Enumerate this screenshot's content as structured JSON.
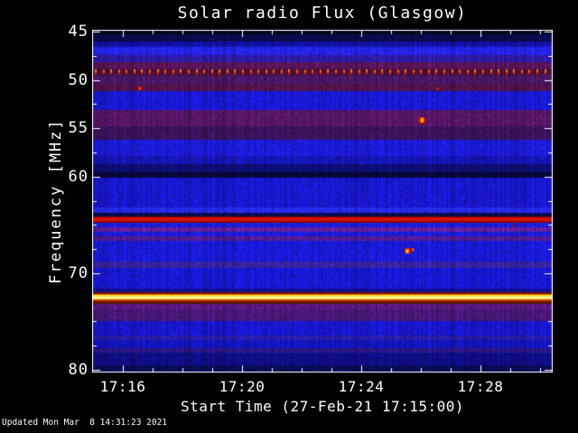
{
  "updated": "Updated Mon Mar  8 14:31:23 2021",
  "chart_data": {
    "type": "heatmap",
    "title": "Solar radio Flux (Glasgow)",
    "xlabel": "Start Time (27-Feb-21 17:15:00)",
    "ylabel": "Frequency [MHz]",
    "x_start_time": "17:15:00",
    "x_span_min": 15.4,
    "x_minor_step_min": 1,
    "x_ticks": [
      {
        "label": "17:16",
        "t": 1
      },
      {
        "label": "17:20",
        "t": 5
      },
      {
        "label": "17:24",
        "t": 9
      },
      {
        "label": "17:28",
        "t": 13
      }
    ],
    "ylim": [
      45,
      80
    ],
    "y_tick_labels": [
      "45",
      "50",
      "55",
      "60",
      "70",
      "80"
    ],
    "y_major_ticks": [
      45,
      50,
      55,
      60,
      70,
      80
    ],
    "y_minor_step": 2.5,
    "colors": {
      "frame": "#ffffff",
      "text": "#ffffff",
      "background": "#000000"
    },
    "bands": [
      [
        44.7,
        45.25,
        "#06061c"
      ],
      [
        45.25,
        45.95,
        "#0a0a48"
      ],
      [
        45.95,
        46.55,
        "#101098"
      ],
      [
        46.55,
        47.35,
        "#2222e0"
      ],
      [
        47.35,
        48.1,
        "#2c189c"
      ],
      [
        48.1,
        48.8,
        "#551353"
      ],
      [
        48.8,
        49.5,
        "#47103c"
      ],
      [
        49.5,
        50.35,
        "#441560"
      ],
      [
        50.35,
        51.1,
        "#4c1146"
      ],
      [
        51.1,
        53.1,
        "#1717c8"
      ],
      [
        53.1,
        54.8,
        "#521460"
      ],
      [
        54.8,
        56.2,
        "#371257"
      ],
      [
        56.2,
        57.8,
        "#1919cc"
      ],
      [
        57.8,
        58.7,
        "#1414aa"
      ],
      [
        58.7,
        59.5,
        "#0d0d6c"
      ],
      [
        59.5,
        60.05,
        "#080834"
      ],
      [
        60.05,
        63.15,
        "#1616c2"
      ],
      [
        63.15,
        63.7,
        "#2525e4"
      ],
      [
        63.7,
        64.08,
        "#0b0b46"
      ],
      [
        64.08,
        64.18,
        "#7e0900",
        "flat"
      ],
      [
        64.18,
        64.58,
        "#d81000",
        "flat"
      ],
      [
        64.58,
        64.7,
        "#8c0a00",
        "flat"
      ],
      [
        64.7,
        65.25,
        "#1a1ace"
      ],
      [
        65.25,
        65.7,
        "#5c1d99"
      ],
      [
        65.7,
        66.18,
        "#1a1ace"
      ],
      [
        66.18,
        66.58,
        "#4d1a8c"
      ],
      [
        66.58,
        68.75,
        "#1818cc"
      ],
      [
        68.75,
        69.4,
        "#342097"
      ],
      [
        69.4,
        71.6,
        "#1616c6"
      ],
      [
        71.6,
        71.92,
        "#101086"
      ],
      [
        71.92,
        72.08,
        "#7c1404",
        "flat"
      ],
      [
        72.08,
        72.24,
        "#e07800",
        "flat"
      ],
      [
        72.24,
        72.38,
        "#ffdf2e",
        "flat"
      ],
      [
        72.38,
        72.54,
        "#ffffae",
        "flat"
      ],
      [
        72.54,
        72.68,
        "#ffd014",
        "flat"
      ],
      [
        72.68,
        72.82,
        "#c83800",
        "flat"
      ],
      [
        72.82,
        73.1,
        "#5e1408",
        "flat"
      ],
      [
        73.1,
        73.68,
        "#53177a"
      ],
      [
        73.68,
        74.9,
        "#441670"
      ],
      [
        74.9,
        76.45,
        "#1515c0"
      ],
      [
        76.45,
        76.85,
        "#271a9e"
      ],
      [
        76.85,
        77.75,
        "#1313b2"
      ],
      [
        77.75,
        78.15,
        "#2a157e"
      ],
      [
        78.15,
        79.5,
        "#0d0d7e"
      ],
      [
        79.5,
        80.35,
        "#0a0a50"
      ]
    ],
    "dotted_line": {
      "f": 49.15,
      "period_min": 0.26,
      "colors": [
        "#e62e00",
        "#ff6a00",
        "#ffa040"
      ],
      "note": "periodic red interference dots across full width"
    },
    "bursts": [
      {
        "t": 1.57,
        "f": 50.85,
        "layers": [
          {
            "w": 4,
            "h": 4,
            "c": "#c82000"
          },
          {
            "w": 2,
            "h": 2,
            "c": "#f04000"
          }
        ]
      },
      {
        "t": 11.55,
        "f": 50.85,
        "layers": [
          {
            "w": 3,
            "h": 3,
            "c": "#c01e00"
          },
          {
            "w": 1,
            "h": 2,
            "c": "#e83800"
          }
        ]
      },
      {
        "t": 11.04,
        "f": 54.15,
        "layers": [
          {
            "w": 9,
            "h": 7,
            "c": "#a01200"
          },
          {
            "w": 6,
            "h": 6,
            "c": "#e03000"
          },
          {
            "w": 3,
            "h": 5,
            "c": "#ff8800"
          },
          {
            "w": 1,
            "h": 4,
            "c": "#ffe870"
          }
        ]
      },
      {
        "t": 10.55,
        "f": 67.65,
        "layers": [
          {
            "w": 7,
            "h": 6,
            "c": "#b81800"
          },
          {
            "w": 4,
            "h": 5,
            "c": "#ff6600"
          },
          {
            "w": 2,
            "h": 3,
            "c": "#ffe870"
          }
        ]
      },
      {
        "t": 10.73,
        "f": 67.6,
        "layers": [
          {
            "w": 2,
            "h": 4,
            "c": "#e83800"
          },
          {
            "w": 1,
            "h": 2,
            "c": "#ffaa00"
          }
        ]
      },
      {
        "t": 14.12,
        "f": 65.05,
        "layers": [
          {
            "w": 1,
            "h": 6,
            "c": "#a81000"
          }
        ]
      }
    ]
  }
}
